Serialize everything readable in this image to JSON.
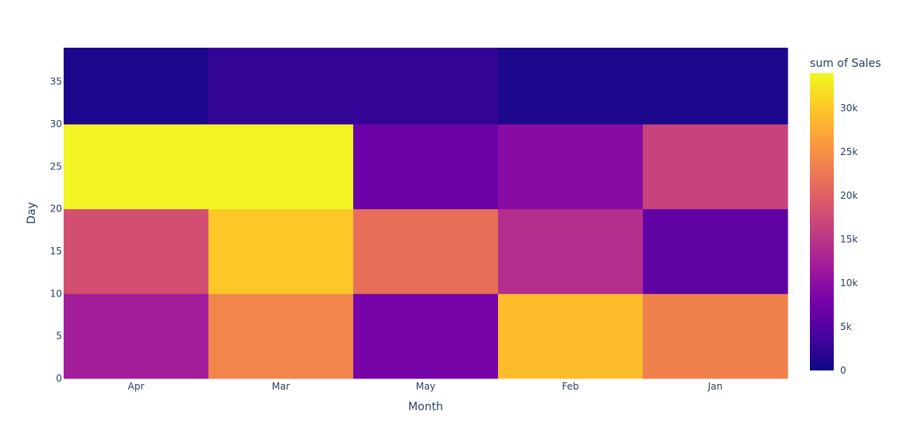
{
  "chart_data": {
    "type": "heatmap",
    "x": [
      "Apr",
      "Mar",
      "May",
      "Feb",
      "Jan"
    ],
    "y_bins": [
      [
        0,
        10
      ],
      [
        10,
        20
      ],
      [
        20,
        30
      ],
      [
        30,
        40
      ]
    ],
    "z": [
      [
        12000,
        24000,
        8000,
        29000,
        23500
      ],
      [
        18000,
        30000,
        21500,
        14000,
        6000
      ],
      [
        33500,
        33500,
        7000,
        9500,
        16500
      ],
      [
        1000,
        2500,
        2500,
        1000,
        1000
      ]
    ],
    "xlabel": "Month",
    "ylabel": "Day",
    "y_ticks": [
      0,
      5,
      10,
      15,
      20,
      25,
      30,
      35
    ],
    "ylim": [
      0,
      39
    ],
    "colorbar": {
      "title": "sum of Sales",
      "range": [
        0,
        34000
      ],
      "ticks": [
        0,
        5000,
        10000,
        15000,
        20000,
        25000,
        30000
      ],
      "tick_labels": [
        "0",
        "5k",
        "10k",
        "15k",
        "20k",
        "25k",
        "30k"
      ]
    },
    "colorscale": [
      "#0d0887",
      "#46039f",
      "#7201a8",
      "#9c179e",
      "#bd3786",
      "#d8576b",
      "#ed7953",
      "#fb9f3a",
      "#fdca26",
      "#f0f921"
    ]
  }
}
